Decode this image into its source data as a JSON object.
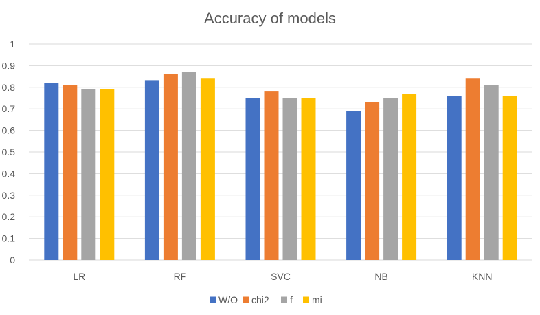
{
  "chart_data": {
    "type": "bar",
    "title": "Accuracy of models",
    "xlabel": "",
    "ylabel": "",
    "categories": [
      "LR",
      "RF",
      "SVC",
      "NB",
      "KNN"
    ],
    "series": [
      {
        "name": "W/O",
        "color": "#4472c4",
        "values": [
          0.82,
          0.83,
          0.75,
          0.69,
          0.76
        ]
      },
      {
        "name": "chi2",
        "color": "#ed7d31",
        "values": [
          0.81,
          0.86,
          0.78,
          0.73,
          0.84
        ]
      },
      {
        "name": "f",
        "color": "#a5a5a5",
        "values": [
          0.79,
          0.87,
          0.75,
          0.75,
          0.81
        ]
      },
      {
        "name": "mi",
        "color": "#ffc000",
        "values": [
          0.79,
          0.84,
          0.75,
          0.77,
          0.76
        ]
      }
    ],
    "ylim": [
      0,
      1
    ],
    "yticks": [
      "0",
      "0.1",
      "0.2",
      "0.3",
      "0.4",
      "0.5",
      "0.6",
      "0.7",
      "0.8",
      "0.9",
      "1"
    ],
    "grid": true,
    "legend_position": "bottom"
  }
}
